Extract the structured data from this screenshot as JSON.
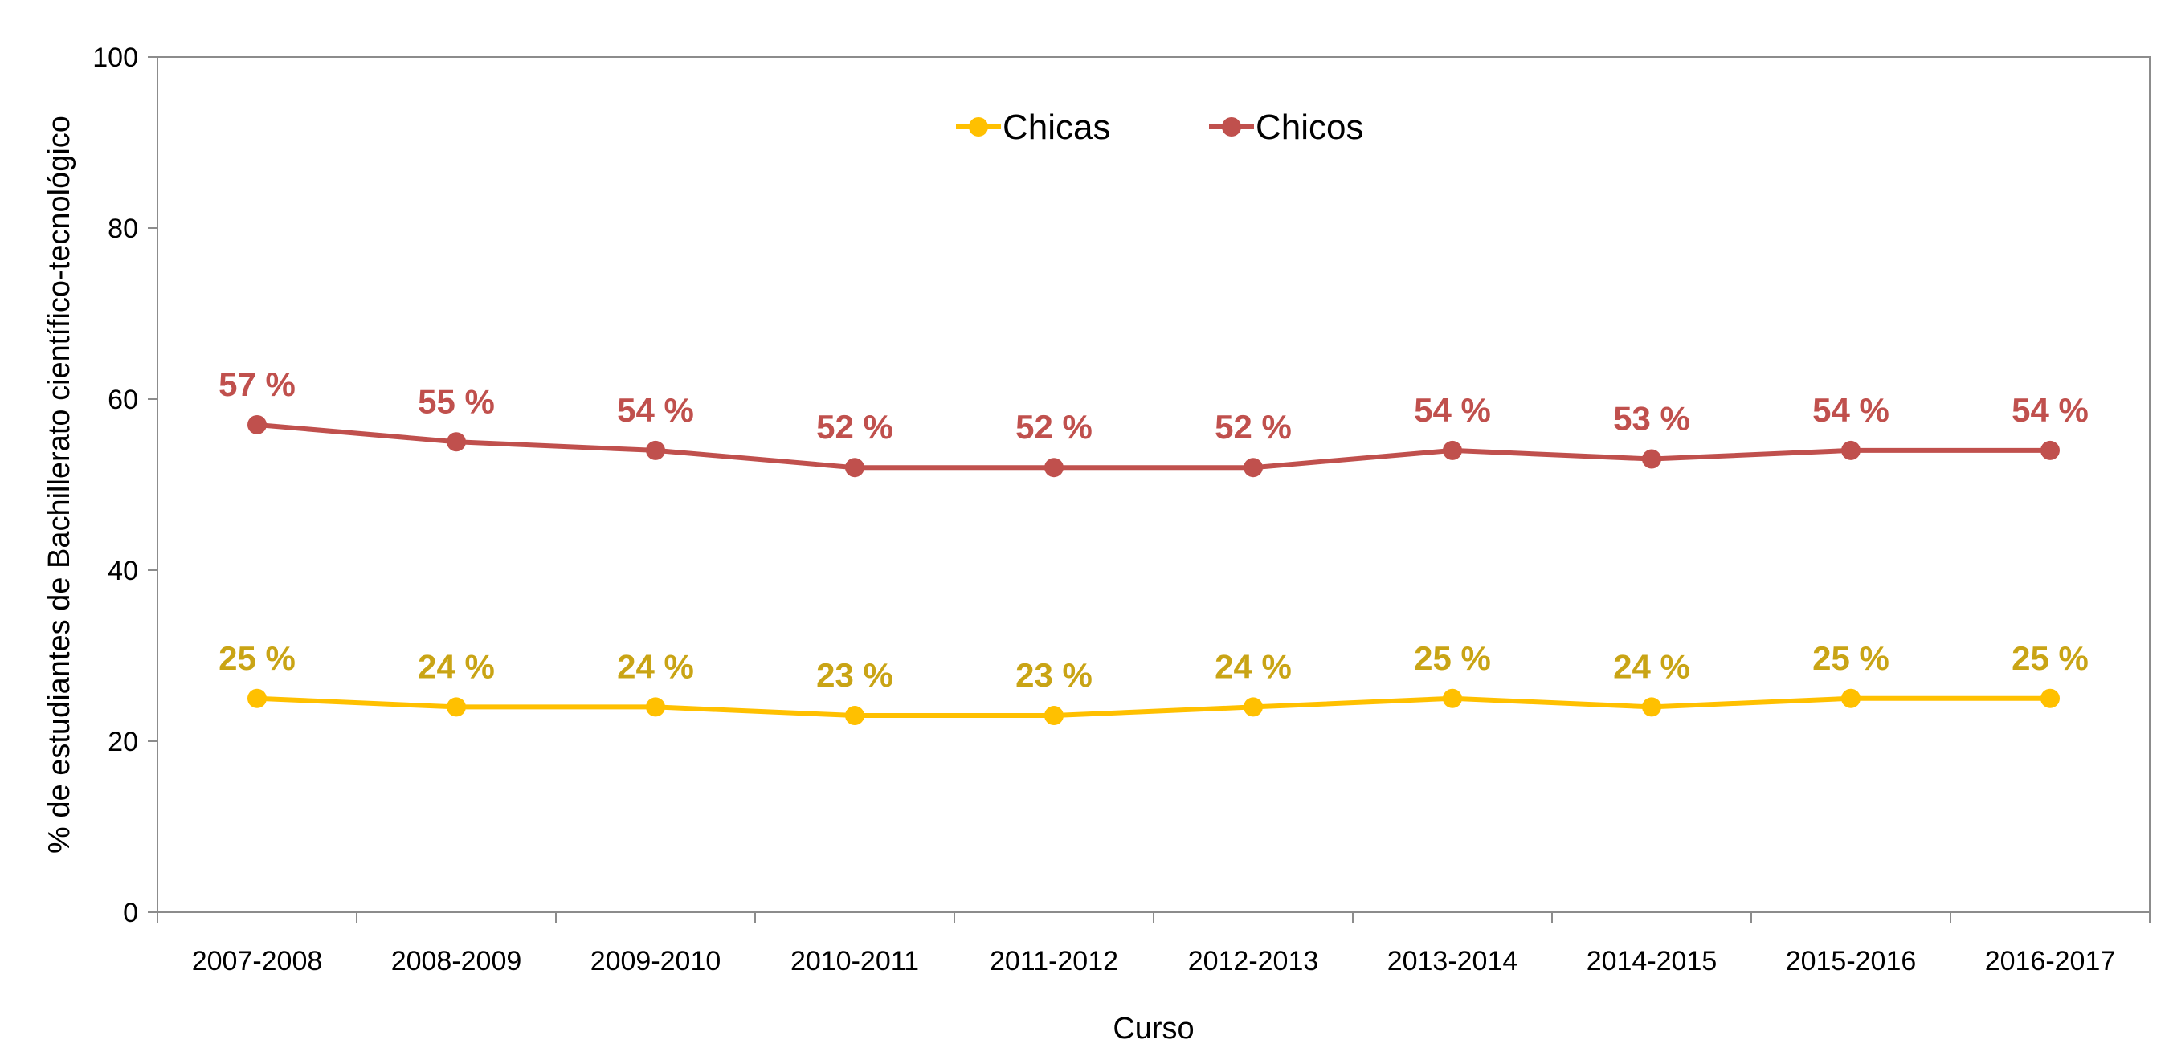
{
  "chart_data": {
    "type": "line",
    "title": "",
    "xlabel": "Curso",
    "ylabel": "% de estudiantes de Bachillerato científico-tecnológico",
    "ylim": [
      0,
      100
    ],
    "yticks": [
      0,
      20,
      40,
      60,
      80,
      100
    ],
    "grid": false,
    "legend": "top-center",
    "categories": [
      "2007-2008",
      "2008-2009",
      "2009-2010",
      "2010-2011",
      "2011-2012",
      "2012-2013",
      "2013-2014",
      "2014-2015",
      "2015-2016",
      "2016-2017"
    ],
    "series": [
      {
        "name": "Chicas",
        "color": "#FFC000",
        "label_color": "#C9A415",
        "values": [
          25,
          24,
          24,
          23,
          23,
          24,
          25,
          24,
          25,
          25
        ],
        "labels": [
          "25 %",
          "24 %",
          "24 %",
          "23 %",
          "23 %",
          "24 %",
          "25 %",
          "24 %",
          "25 %",
          "25 %"
        ]
      },
      {
        "name": "Chicos",
        "color": "#C0504D",
        "label_color": "#C0504D",
        "values": [
          57,
          55,
          54,
          52,
          52,
          52,
          54,
          53,
          54,
          54
        ],
        "labels": [
          "57 %",
          "55 %",
          "54 %",
          "52 %",
          "52 %",
          "52 %",
          "54 %",
          "53 %",
          "54 %",
          "54 %"
        ]
      }
    ]
  }
}
